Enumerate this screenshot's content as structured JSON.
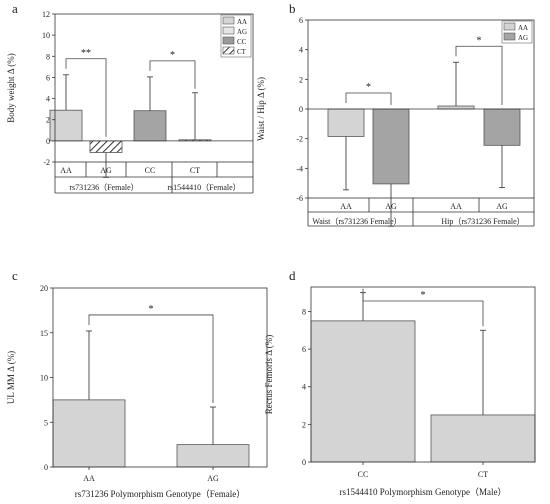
{
  "chart_data": [
    {
      "panel_letter": "a",
      "type": "bar",
      "ylabel": "Body weight Δ (%)",
      "ylim": [
        -2,
        12
      ],
      "yticks": [
        -2,
        0,
        2,
        4,
        6,
        8,
        10,
        12
      ],
      "categories": [
        "AA",
        "AG",
        "CC",
        "CT"
      ],
      "group_labels": [
        "rs731236（Female）",
        "rs1544410（Female）"
      ],
      "values": [
        2.9,
        -1.1,
        2.85,
        0.1
      ],
      "errors": [
        3.35,
        2.35,
        3.2,
        4.45
      ],
      "fills": [
        "#d4d4d4",
        "hatch",
        "#a4a4a4",
        "hatch"
      ],
      "legend": [
        "AA",
        "AG",
        "CC",
        "CT"
      ],
      "legend_fills": [
        "#d4d4d4",
        "#e6e6e6",
        "#9a9a9a",
        "hatch"
      ],
      "significance": [
        {
          "from": 0,
          "to": 1,
          "label": "**"
        },
        {
          "from": 2,
          "to": 3,
          "label": "*"
        }
      ]
    },
    {
      "panel_letter": "b",
      "type": "bar",
      "ylabel": "Waist / Hip Δ (%)",
      "ylim": [
        -6,
        6
      ],
      "yticks": [
        -6,
        -4,
        -2,
        0,
        2,
        4,
        6
      ],
      "categories": [
        "AA",
        "AG",
        "AA",
        "AG"
      ],
      "group_labels": [
        "Waist（rs731236 Female）",
        "Hip（rs731236 Female）"
      ],
      "values": [
        -1.85,
        -5.05,
        0.2,
        -2.45
      ],
      "errors": [
        3.6,
        2.85,
        2.95,
        2.85
      ],
      "fills": [
        "#d4d4d4",
        "#a4a4a4",
        "#d4d4d4",
        "#a4a4a4"
      ],
      "legend": [
        "AA",
        "AG"
      ],
      "legend_fills": [
        "#d4d4d4",
        "#a4a4a4"
      ],
      "significance": [
        {
          "from": 0,
          "to": 1,
          "label": "*"
        },
        {
          "from": 2,
          "to": 3,
          "label": "*"
        }
      ]
    },
    {
      "panel_letter": "c",
      "type": "bar",
      "ylabel": "UL MM Δ (%)",
      "xlabel": "rs731236 Polymorphism Genotype（Female）",
      "ylim": [
        0,
        20
      ],
      "yticks": [
        0,
        5,
        10,
        15,
        20
      ],
      "categories": [
        "AA",
        "AG"
      ],
      "values": [
        7.5,
        2.5
      ],
      "errors": [
        7.7,
        4.2
      ],
      "fills": [
        "#d4d4d4",
        "#d4d4d4"
      ],
      "significance": [
        {
          "from": 0,
          "to": 1,
          "label": "*"
        }
      ]
    },
    {
      "panel_letter": "d",
      "type": "bar",
      "ylabel": "Rectus Femoris Δ (%)",
      "xlabel": "rs1544410 Polymorphism Genotype（Male）",
      "ylim": [
        0,
        9.3
      ],
      "yticks": [
        0,
        2,
        4,
        6,
        8
      ],
      "categories": [
        "CC",
        "CT"
      ],
      "values": [
        7.5,
        2.5
      ],
      "errors": [
        1.5,
        4.5
      ],
      "fills": [
        "#d4d4d4",
        "#d4d4d4"
      ],
      "significance": [
        {
          "from": 0,
          "to": 1,
          "label": "*"
        }
      ]
    }
  ]
}
